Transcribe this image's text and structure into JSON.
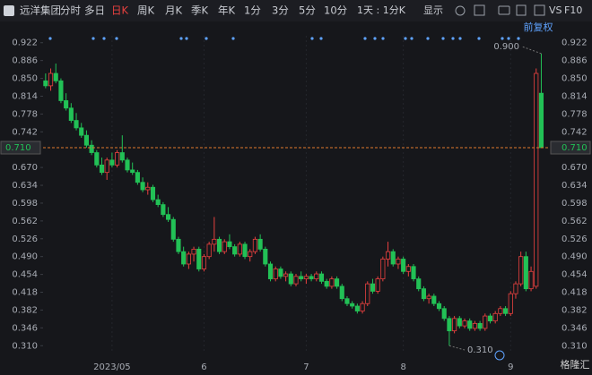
{
  "toolbar": {
    "stock": "远洋集团",
    "tabs": [
      "分时",
      "多日",
      "日K",
      "周K",
      "月K",
      "季K",
      "年K",
      "1分",
      "3分",
      "5分",
      "10分"
    ],
    "period": "1天 : 1分K",
    "display": "显示",
    "vs": "VS",
    "f10": "F10"
  },
  "watermark": "格隆汇",
  "chart_data": {
    "type": "candlestick",
    "adjust_label": "前复权",
    "ylim": [
      0.296,
      0.936
    ],
    "yticks": [
      {
        "value": 0.922,
        "label": "0.922"
      },
      {
        "value": 0.886,
        "label": "0.886"
      },
      {
        "value": 0.85,
        "label": "0.850"
      },
      {
        "value": 0.814,
        "label": "0.814"
      },
      {
        "value": 0.778,
        "label": "0.778"
      },
      {
        "value": 0.742,
        "label": "0.742"
      },
      {
        "value": 0.67,
        "label": "0.670"
      },
      {
        "value": 0.634,
        "label": "0.634"
      },
      {
        "value": 0.598,
        "label": "0.598"
      },
      {
        "value": 0.562,
        "label": "0.562"
      },
      {
        "value": 0.526,
        "label": "0.526"
      },
      {
        "value": 0.49,
        "label": "0.490"
      },
      {
        "value": 0.454,
        "label": "0.454"
      },
      {
        "value": 0.418,
        "label": "0.418"
      },
      {
        "value": 0.382,
        "label": "0.382"
      },
      {
        "value": 0.346,
        "label": "0.346"
      },
      {
        "value": 0.31,
        "label": "0.310"
      }
    ],
    "last_price": {
      "value": 0.71,
      "label": "0.710"
    },
    "high_label": {
      "value": 0.9,
      "label": "0.900"
    },
    "low_label": {
      "value": 0.31,
      "label": "0.310"
    },
    "up_color": "#e8413f",
    "down_color": "#22c156",
    "categories": [
      null,
      null,
      null,
      null,
      null,
      null,
      null,
      null,
      null,
      null,
      null,
      null,
      null,
      "2023/05",
      null,
      null,
      null,
      null,
      null,
      null,
      null,
      null,
      null,
      null,
      null,
      null,
      null,
      null,
      null,
      null,
      null,
      "6",
      null,
      null,
      null,
      null,
      null,
      null,
      null,
      null,
      null,
      null,
      null,
      null,
      null,
      null,
      null,
      null,
      null,
      null,
      null,
      "7",
      null,
      null,
      null,
      null,
      null,
      null,
      null,
      null,
      null,
      null,
      null,
      null,
      null,
      null,
      null,
      null,
      null,
      null,
      "8",
      null,
      null,
      null,
      null,
      null,
      null,
      null,
      null,
      null,
      null,
      null,
      null,
      null,
      null,
      null,
      null,
      null,
      null,
      null,
      null,
      "9",
      null,
      null,
      null,
      null,
      null,
      null
    ],
    "candles": [
      [
        0.845,
        0.86,
        0.83,
        0.835
      ],
      [
        0.835,
        0.87,
        0.825,
        0.86
      ],
      [
        0.86,
        0.88,
        0.84,
        0.845
      ],
      [
        0.845,
        0.85,
        0.8,
        0.805
      ],
      [
        0.805,
        0.82,
        0.785,
        0.79
      ],
      [
        0.79,
        0.8,
        0.76,
        0.765
      ],
      [
        0.765,
        0.78,
        0.745,
        0.75
      ],
      [
        0.75,
        0.76,
        0.73,
        0.735
      ],
      [
        0.735,
        0.745,
        0.71,
        0.715
      ],
      [
        0.715,
        0.725,
        0.695,
        0.7
      ],
      [
        0.7,
        0.705,
        0.67,
        0.675
      ],
      [
        0.675,
        0.69,
        0.655,
        0.66
      ],
      [
        0.66,
        0.69,
        0.645,
        0.685
      ],
      [
        0.685,
        0.7,
        0.67,
        0.675
      ],
      [
        0.675,
        0.705,
        0.67,
        0.7
      ],
      [
        0.7,
        0.735,
        0.68,
        0.685
      ],
      [
        0.685,
        0.69,
        0.66,
        0.665
      ],
      [
        0.665,
        0.68,
        0.655,
        0.66
      ],
      [
        0.66,
        0.665,
        0.635,
        0.64
      ],
      [
        0.64,
        0.65,
        0.62,
        0.625
      ],
      [
        0.625,
        0.64,
        0.615,
        0.63
      ],
      [
        0.63,
        0.635,
        0.6,
        0.605
      ],
      [
        0.605,
        0.615,
        0.59,
        0.595
      ],
      [
        0.595,
        0.6,
        0.57,
        0.575
      ],
      [
        0.575,
        0.59,
        0.56,
        0.565
      ],
      [
        0.565,
        0.57,
        0.52,
        0.525
      ],
      [
        0.525,
        0.53,
        0.495,
        0.5
      ],
      [
        0.5,
        0.51,
        0.47,
        0.475
      ],
      [
        0.475,
        0.5,
        0.465,
        0.495
      ],
      [
        0.495,
        0.51,
        0.48,
        0.505
      ],
      [
        0.505,
        0.51,
        0.46,
        0.465
      ],
      [
        0.465,
        0.495,
        0.46,
        0.49
      ],
      [
        0.49,
        0.52,
        0.485,
        0.515
      ],
      [
        0.515,
        0.57,
        0.5,
        0.525
      ],
      [
        0.525,
        0.53,
        0.495,
        0.5
      ],
      [
        0.5,
        0.525,
        0.495,
        0.52
      ],
      [
        0.52,
        0.535,
        0.505,
        0.51
      ],
      [
        0.51,
        0.515,
        0.49,
        0.495
      ],
      [
        0.495,
        0.52,
        0.49,
        0.515
      ],
      [
        0.515,
        0.52,
        0.485,
        0.49
      ],
      [
        0.49,
        0.505,
        0.48,
        0.5
      ],
      [
        0.5,
        0.53,
        0.495,
        0.525
      ],
      [
        0.525,
        0.535,
        0.5,
        0.505
      ],
      [
        0.505,
        0.51,
        0.47,
        0.475
      ],
      [
        0.475,
        0.48,
        0.44,
        0.445
      ],
      [
        0.445,
        0.47,
        0.44,
        0.465
      ],
      [
        0.465,
        0.47,
        0.445,
        0.45
      ],
      [
        0.45,
        0.46,
        0.44,
        0.455
      ],
      [
        0.455,
        0.46,
        0.43,
        0.435
      ],
      [
        0.435,
        0.455,
        0.43,
        0.45
      ],
      [
        0.45,
        0.46,
        0.44,
        0.445
      ],
      [
        0.445,
        0.455,
        0.435,
        0.45
      ],
      [
        0.45,
        0.455,
        0.44,
        0.445
      ],
      [
        0.445,
        0.46,
        0.44,
        0.455
      ],
      [
        0.455,
        0.46,
        0.435,
        0.44
      ],
      [
        0.44,
        0.445,
        0.425,
        0.43
      ],
      [
        0.43,
        0.45,
        0.425,
        0.445
      ],
      [
        0.445,
        0.45,
        0.425,
        0.43
      ],
      [
        0.43,
        0.435,
        0.4,
        0.405
      ],
      [
        0.405,
        0.41,
        0.39,
        0.395
      ],
      [
        0.395,
        0.4,
        0.385,
        0.39
      ],
      [
        0.39,
        0.395,
        0.375,
        0.38
      ],
      [
        0.38,
        0.4,
        0.375,
        0.395
      ],
      [
        0.395,
        0.44,
        0.39,
        0.435
      ],
      [
        0.435,
        0.445,
        0.415,
        0.42
      ],
      [
        0.42,
        0.45,
        0.415,
        0.445
      ],
      [
        0.445,
        0.49,
        0.44,
        0.485
      ],
      [
        0.485,
        0.52,
        0.47,
        0.5
      ],
      [
        0.5,
        0.505,
        0.47,
        0.475
      ],
      [
        0.475,
        0.49,
        0.465,
        0.485
      ],
      [
        0.485,
        0.49,
        0.455,
        0.46
      ],
      [
        0.46,
        0.475,
        0.45,
        0.47
      ],
      [
        0.47,
        0.475,
        0.44,
        0.445
      ],
      [
        0.445,
        0.45,
        0.42,
        0.425
      ],
      [
        0.425,
        0.43,
        0.4,
        0.405
      ],
      [
        0.405,
        0.415,
        0.395,
        0.41
      ],
      [
        0.41,
        0.415,
        0.39,
        0.395
      ],
      [
        0.395,
        0.4,
        0.38,
        0.385
      ],
      [
        0.385,
        0.39,
        0.36,
        0.365
      ],
      [
        0.365,
        0.37,
        0.31,
        0.34
      ],
      [
        0.34,
        0.37,
        0.335,
        0.365
      ],
      [
        0.365,
        0.37,
        0.345,
        0.35
      ],
      [
        0.35,
        0.365,
        0.345,
        0.36
      ],
      [
        0.36,
        0.365,
        0.34,
        0.345
      ],
      [
        0.345,
        0.36,
        0.34,
        0.355
      ],
      [
        0.355,
        0.36,
        0.34,
        0.345
      ],
      [
        0.345,
        0.375,
        0.34,
        0.37
      ],
      [
        0.37,
        0.375,
        0.355,
        0.36
      ],
      [
        0.36,
        0.38,
        0.355,
        0.375
      ],
      [
        0.375,
        0.39,
        0.37,
        0.385
      ],
      [
        0.385,
        0.39,
        0.37,
        0.375
      ],
      [
        0.375,
        0.42,
        0.37,
        0.415
      ],
      [
        0.415,
        0.44,
        0.405,
        0.435
      ],
      [
        0.435,
        0.5,
        0.43,
        0.49
      ],
      [
        0.49,
        0.5,
        0.42,
        0.425
      ],
      [
        0.425,
        0.47,
        0.42,
        0.46
      ],
      [
        0.43,
        0.87,
        0.425,
        0.86
      ],
      [
        0.82,
        0.9,
        0.71,
        0.71
      ]
    ]
  }
}
